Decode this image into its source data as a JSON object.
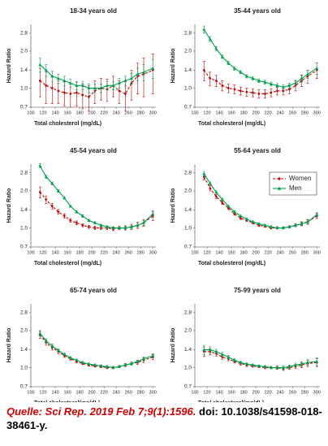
{
  "chart_data": [
    {
      "type": "line",
      "title": "18-34 years old",
      "xlabel": "Total cholesterol (mg/dL)",
      "ylabel": "Hazard Ratio",
      "log_y": true,
      "x": [
        115,
        125,
        135,
        145,
        155,
        165,
        175,
        185,
        195,
        205,
        215,
        225,
        235,
        245,
        255,
        265,
        275,
        285,
        300
      ],
      "xlim": [
        100,
        305
      ],
      "xticks": [
        100,
        120,
        140,
        160,
        180,
        200,
        220,
        240,
        260,
        280,
        300
      ],
      "ylim": [
        0.7,
        3.3
      ],
      "yticks": [
        0.7,
        {
          "value": 1,
          "label": "1.0"
        },
        1.4,
        {
          "value": 2,
          "label": "2.0"
        },
        2.8
      ],
      "series": [
        {
          "color": "#c00000",
          "linestyle": "dashed",
          "marker": "diamond",
          "values": [
            1.15,
            1.05,
            1.0,
            0.95,
            0.92,
            0.9,
            0.92,
            0.88,
            0.85,
            0.95,
            1.0,
            0.98,
            1.05,
            0.95,
            0.9,
            1.1,
            1.25,
            1.3,
            1.4
          ],
          "errors": [
            0.3,
            0.3,
            0.25,
            0.2,
            0.2,
            0.2,
            0.2,
            0.2,
            0.2,
            0.2,
            0.2,
            0.2,
            0.2,
            0.2,
            0.25,
            0.3,
            0.35,
            0.45,
            0.5
          ]
        },
        {
          "color": "#00a050",
          "linestyle": "solid",
          "marker": "triangle",
          "values": [
            1.55,
            1.4,
            1.25,
            1.2,
            1.15,
            1.1,
            1.05,
            1.05,
            1.0,
            1.0,
            1.0,
            1.05,
            1.05,
            1.1,
            1.15,
            1.2,
            1.3,
            1.35,
            1.45
          ],
          "errors": [
            0.2,
            0.15,
            0.12,
            0.1,
            0.1,
            0.08,
            0.08,
            0.08,
            0.08,
            0.08,
            0.08,
            0.08,
            0.08,
            0.1,
            0.1,
            0.12,
            0.15,
            0.2,
            0.25
          ]
        }
      ]
    },
    {
      "type": "line",
      "title": "35-44 years old",
      "xlabel": "Total cholesterol (mg/dL)",
      "ylabel": "Hazard Ratio",
      "log_y": true,
      "x": [
        115,
        125,
        135,
        145,
        155,
        165,
        175,
        185,
        195,
        205,
        215,
        225,
        235,
        245,
        255,
        265,
        275,
        285,
        300
      ],
      "xlim": [
        100,
        305
      ],
      "xticks": [
        100,
        120,
        140,
        160,
        180,
        200,
        220,
        240,
        260,
        280,
        300
      ],
      "ylim": [
        0.7,
        3.3
      ],
      "yticks": [
        0.7,
        {
          "value": 1,
          "label": "1.0"
        },
        1.4,
        {
          "value": 2,
          "label": "2.0"
        },
        2.8
      ],
      "series": [
        {
          "color": "#c00000",
          "linestyle": "dashed",
          "marker": "diamond",
          "values": [
            1.4,
            1.2,
            1.15,
            1.05,
            1.0,
            0.98,
            0.95,
            0.93,
            0.92,
            0.9,
            0.9,
            0.92,
            0.95,
            0.95,
            0.98,
            1.05,
            1.15,
            1.25,
            1.4
          ],
          "errors": [
            0.25,
            0.15,
            0.12,
            0.1,
            0.08,
            0.08,
            0.07,
            0.07,
            0.07,
            0.07,
            0.07,
            0.07,
            0.07,
            0.07,
            0.08,
            0.1,
            0.12,
            0.15,
            0.2
          ]
        },
        {
          "color": "#00a050",
          "linestyle": "solid",
          "marker": "triangle",
          "values": [
            3.0,
            2.5,
            2.1,
            1.8,
            1.6,
            1.45,
            1.35,
            1.25,
            1.2,
            1.15,
            1.12,
            1.08,
            1.05,
            1.02,
            1.05,
            1.1,
            1.2,
            1.3,
            1.45
          ],
          "errors": [
            0.2,
            0.12,
            0.08,
            0.06,
            0.05,
            0.05,
            0.04,
            0.04,
            0.04,
            0.04,
            0.04,
            0.04,
            0.04,
            0.04,
            0.05,
            0.06,
            0.08,
            0.1,
            0.15
          ]
        }
      ]
    },
    {
      "type": "line",
      "title": "45-54 years old",
      "xlabel": "Total cholesterol (mg/dL)",
      "ylabel": "Hazard Ratio",
      "log_y": true,
      "x": [
        115,
        125,
        135,
        145,
        155,
        165,
        175,
        185,
        195,
        205,
        215,
        225,
        235,
        245,
        255,
        265,
        275,
        285,
        300
      ],
      "xlim": [
        100,
        305
      ],
      "xticks": [
        100,
        120,
        140,
        160,
        180,
        200,
        220,
        240,
        260,
        280,
        300
      ],
      "ylim": [
        0.7,
        3.3
      ],
      "yticks": [
        0.7,
        {
          "value": 1,
          "label": "1.0"
        },
        1.4,
        {
          "value": 2,
          "label": "2.0"
        },
        2.8
      ],
      "series": [
        {
          "color": "#c00000",
          "linestyle": "dashed",
          "marker": "diamond",
          "values": [
            1.95,
            1.7,
            1.5,
            1.35,
            1.25,
            1.15,
            1.1,
            1.05,
            1.02,
            1.0,
            1.0,
            1.0,
            0.98,
            1.0,
            1.0,
            1.02,
            1.05,
            1.1,
            1.25
          ],
          "errors": [
            0.2,
            0.12,
            0.08,
            0.06,
            0.05,
            0.04,
            0.04,
            0.03,
            0.03,
            0.03,
            0.03,
            0.03,
            0.03,
            0.03,
            0.04,
            0.05,
            0.06,
            0.07,
            0.1
          ]
        },
        {
          "color": "#00a050",
          "linestyle": "solid",
          "marker": "triangle",
          "values": [
            3.2,
            2.6,
            2.3,
            2.0,
            1.75,
            1.5,
            1.35,
            1.25,
            1.15,
            1.1,
            1.05,
            1.02,
            1.0,
            1.0,
            1.0,
            1.02,
            1.05,
            1.1,
            1.3
          ],
          "errors": [
            0.12,
            0.08,
            0.06,
            0.05,
            0.04,
            0.03,
            0.03,
            0.03,
            0.02,
            0.02,
            0.02,
            0.02,
            0.02,
            0.02,
            0.03,
            0.03,
            0.04,
            0.05,
            0.08
          ]
        }
      ]
    },
    {
      "type": "line",
      "title": "55-64 years old",
      "xlabel": "Total cholesterol (mg/dL)",
      "ylabel": "Hazard Ratio",
      "log_y": true,
      "legend": "upper right",
      "x": [
        115,
        125,
        135,
        145,
        155,
        165,
        175,
        185,
        195,
        205,
        215,
        225,
        235,
        245,
        255,
        265,
        275,
        285,
        300
      ],
      "xlim": [
        100,
        305
      ],
      "xticks": [
        100,
        120,
        140,
        160,
        180,
        200,
        220,
        240,
        260,
        280,
        300
      ],
      "ylim": [
        0.7,
        3.3
      ],
      "yticks": [
        0.7,
        {
          "value": 1,
          "label": "1.0"
        },
        1.4,
        {
          "value": 2,
          "label": "2.0"
        },
        2.8
      ],
      "series": [
        {
          "name": "Women",
          "color": "#c00000",
          "linestyle": "dashed",
          "marker": "diamond",
          "values": [
            2.6,
            2.1,
            1.8,
            1.6,
            1.45,
            1.3,
            1.2,
            1.15,
            1.1,
            1.05,
            1.03,
            1.0,
            1.0,
            1.0,
            1.02,
            1.05,
            1.08,
            1.12,
            1.25
          ],
          "errors": [
            0.15,
            0.1,
            0.07,
            0.05,
            0.04,
            0.03,
            0.03,
            0.02,
            0.02,
            0.02,
            0.02,
            0.02,
            0.02,
            0.02,
            0.02,
            0.03,
            0.04,
            0.05,
            0.06
          ]
        },
        {
          "name": "Men",
          "color": "#00a050",
          "linestyle": "solid",
          "marker": "triangle",
          "values": [
            2.75,
            2.3,
            1.95,
            1.7,
            1.5,
            1.35,
            1.25,
            1.18,
            1.12,
            1.08,
            1.05,
            1.02,
            1.0,
            1.0,
            1.02,
            1.05,
            1.08,
            1.12,
            1.28
          ],
          "errors": [
            0.1,
            0.07,
            0.05,
            0.04,
            0.03,
            0.03,
            0.02,
            0.02,
            0.02,
            0.02,
            0.02,
            0.02,
            0.02,
            0.02,
            0.02,
            0.03,
            0.03,
            0.04,
            0.05
          ]
        }
      ]
    },
    {
      "type": "line",
      "title": "65-74 years old",
      "xlabel": "Total cholesterol(mg/dL)",
      "ylabel": "Hazard Ratio",
      "log_y": true,
      "x": [
        115,
        125,
        135,
        145,
        155,
        165,
        175,
        185,
        195,
        205,
        215,
        225,
        235,
        245,
        255,
        265,
        275,
        285,
        300
      ],
      "xlim": [
        100,
        305
      ],
      "xticks": [
        100,
        120,
        140,
        160,
        180,
        200,
        220,
        240,
        260,
        280,
        300
      ],
      "ylim": [
        0.7,
        3.3
      ],
      "yticks": [
        0.7,
        {
          "value": 1,
          "label": "1.0"
        },
        1.4,
        {
          "value": 2,
          "label": "2.0"
        },
        2.8
      ],
      "series": [
        {
          "color": "#c00000",
          "linestyle": "dashed",
          "marker": "diamond",
          "values": [
            1.85,
            1.6,
            1.45,
            1.35,
            1.25,
            1.18,
            1.12,
            1.08,
            1.05,
            1.03,
            1.02,
            1.0,
            1.0,
            1.02,
            1.05,
            1.08,
            1.1,
            1.15,
            1.22
          ],
          "errors": [
            0.12,
            0.08,
            0.06,
            0.05,
            0.04,
            0.03,
            0.03,
            0.02,
            0.02,
            0.02,
            0.02,
            0.02,
            0.02,
            0.02,
            0.03,
            0.03,
            0.04,
            0.05,
            0.06
          ]
        },
        {
          "color": "#00a050",
          "linestyle": "solid",
          "marker": "triangle",
          "values": [
            1.9,
            1.65,
            1.5,
            1.38,
            1.28,
            1.2,
            1.15,
            1.1,
            1.07,
            1.05,
            1.03,
            1.02,
            1.0,
            1.02,
            1.05,
            1.08,
            1.12,
            1.18,
            1.25
          ],
          "errors": [
            0.1,
            0.07,
            0.05,
            0.04,
            0.03,
            0.03,
            0.02,
            0.02,
            0.02,
            0.02,
            0.02,
            0.02,
            0.02,
            0.02,
            0.02,
            0.03,
            0.03,
            0.04,
            0.05
          ]
        }
      ]
    },
    {
      "type": "line",
      "title": "75-99 years old",
      "xlabel": "Total cholesterol(mg/dL)",
      "ylabel": "Hazard Ratio",
      "log_y": true,
      "x": [
        115,
        125,
        135,
        145,
        155,
        165,
        175,
        185,
        195,
        205,
        215,
        225,
        235,
        245,
        255,
        265,
        275,
        285,
        300
      ],
      "xlim": [
        100,
        305
      ],
      "xticks": [
        100,
        120,
        140,
        160,
        180,
        200,
        220,
        240,
        260,
        280,
        300
      ],
      "ylim": [
        0.7,
        3.3
      ],
      "yticks": [
        0.7,
        {
          "value": 1,
          "label": "1.0"
        },
        1.4,
        {
          "value": 2,
          "label": "2.0"
        },
        2.8
      ],
      "series": [
        {
          "color": "#c00000",
          "linestyle": "dashed",
          "marker": "diamond",
          "values": [
            1.35,
            1.35,
            1.3,
            1.22,
            1.18,
            1.12,
            1.08,
            1.05,
            1.03,
            1.02,
            1.0,
            1.0,
            1.0,
            0.98,
            1.0,
            1.02,
            1.05,
            1.08,
            1.1
          ],
          "errors": [
            0.12,
            0.08,
            0.06,
            0.05,
            0.04,
            0.03,
            0.03,
            0.03,
            0.02,
            0.02,
            0.02,
            0.02,
            0.03,
            0.03,
            0.03,
            0.04,
            0.05,
            0.06,
            0.08
          ]
        },
        {
          "color": "#00a050",
          "linestyle": "solid",
          "marker": "triangle",
          "values": [
            1.4,
            1.4,
            1.35,
            1.28,
            1.22,
            1.15,
            1.1,
            1.07,
            1.05,
            1.03,
            1.02,
            1.0,
            1.0,
            1.0,
            1.02,
            1.05,
            1.07,
            1.1,
            1.12
          ],
          "errors": [
            0.12,
            0.08,
            0.06,
            0.05,
            0.04,
            0.03,
            0.03,
            0.02,
            0.02,
            0.02,
            0.02,
            0.02,
            0.02,
            0.03,
            0.03,
            0.04,
            0.05,
            0.06,
            0.08
          ]
        }
      ]
    }
  ],
  "source": {
    "citation": "Quelle: Sci Rep. 2019 Feb 7;9(1):1596.",
    "doi": "doi: 10.1038/s41598-018-38461-y."
  }
}
